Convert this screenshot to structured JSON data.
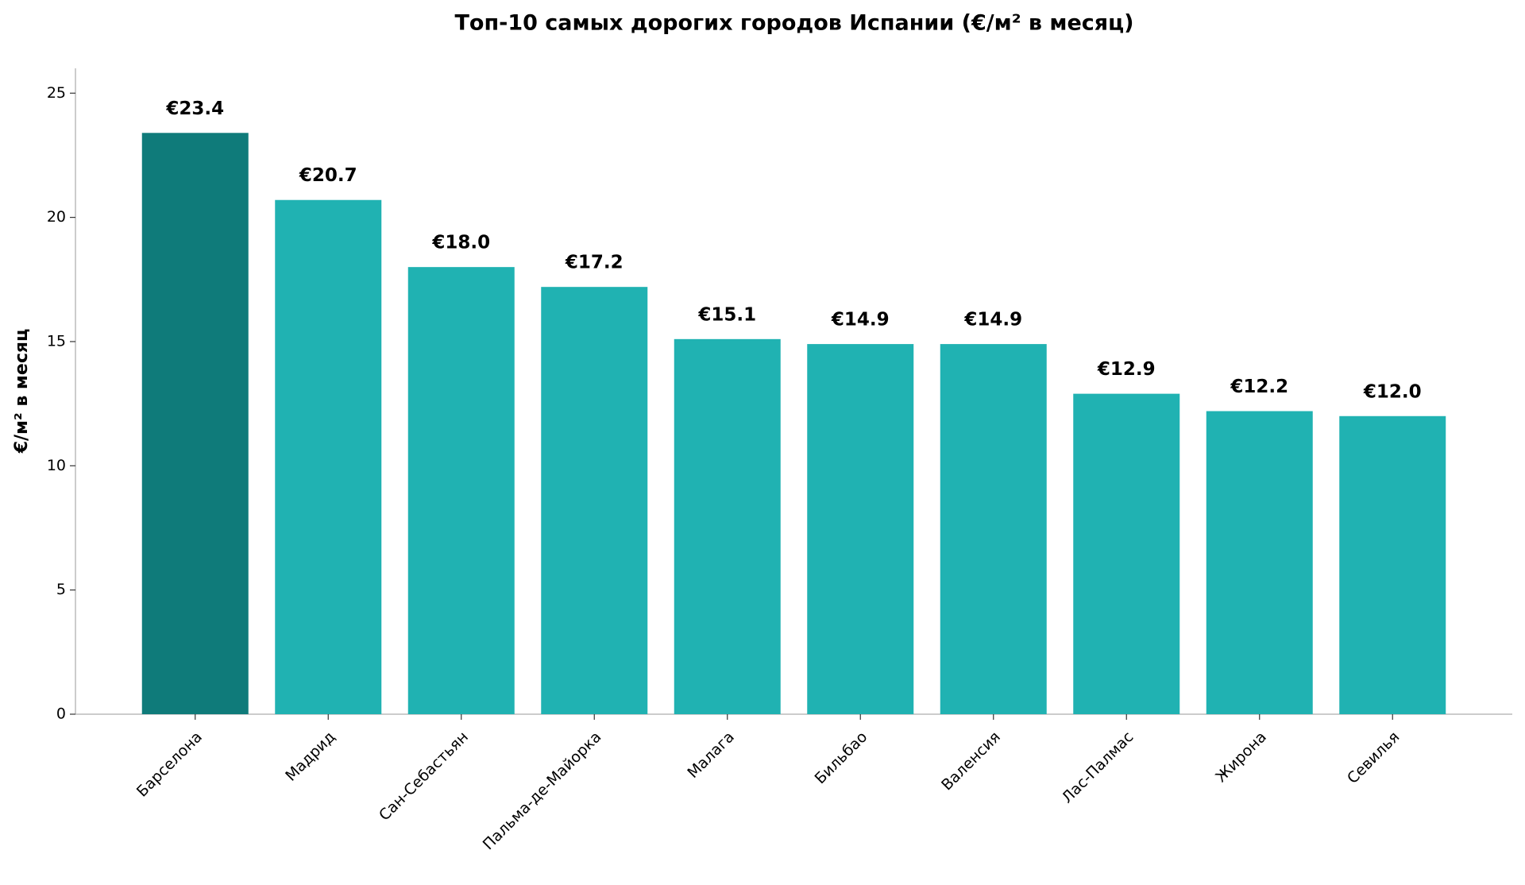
{
  "chart_data": {
    "type": "bar",
    "title": "Топ-10 самых дорогих городов Испании (€/м² в месяц)",
    "y_label": "€/м² в месяц",
    "categories": [
      "Барселона",
      "Мадрид",
      "Сан-Себастьян",
      "Пальма-де-Майорка",
      "Малага",
      "Бильбао",
      "Валенсия",
      "Лас-Палмас",
      "Жирона",
      "Севилья"
    ],
    "values": [
      23.4,
      20.7,
      18.0,
      17.2,
      15.1,
      14.9,
      14.9,
      12.9,
      12.2,
      12.0
    ],
    "value_labels": [
      "€23.4",
      "€20.7",
      "€18.0",
      "€17.2",
      "€15.1",
      "€14.9",
      "€14.9",
      "€12.9",
      "€12.2",
      "€12.0"
    ],
    "colors": [
      "#0f7b7a",
      "#20b2b2",
      "#20b2b2",
      "#20b2b2",
      "#20b2b2",
      "#20b2b2",
      "#20b2b2",
      "#20b2b2",
      "#20b2b2",
      "#20b2b2"
    ],
    "ylim": [
      0,
      26
    ],
    "yticks": [
      0,
      5,
      10,
      15,
      20,
      25
    ],
    "grid": false
  }
}
